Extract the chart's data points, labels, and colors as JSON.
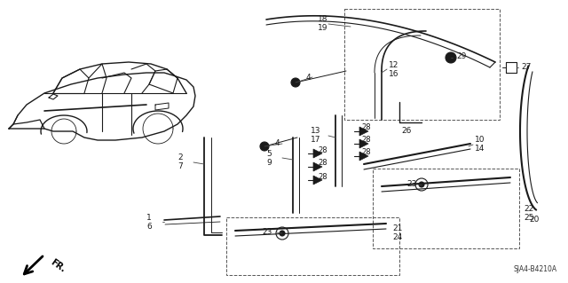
{
  "bg_color": "#ffffff",
  "diagram_code": "SJA4-B4210A",
  "lw": 1.0,
  "color": "#1a1a1a"
}
